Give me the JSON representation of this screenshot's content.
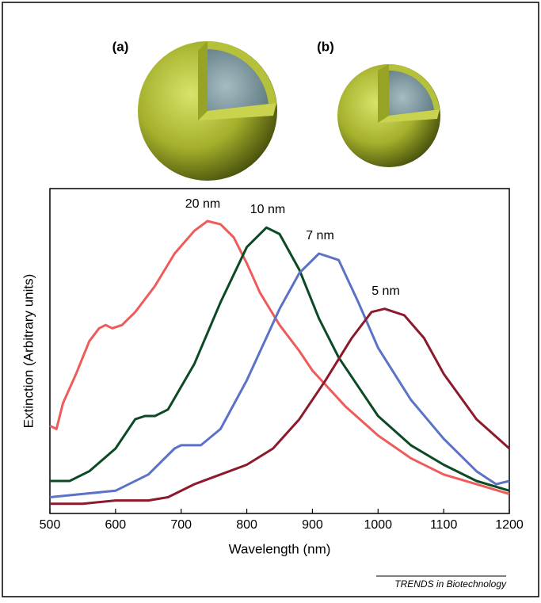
{
  "panel_labels": [
    "(a)",
    "(b)"
  ],
  "footer": "TRENDS in Biotechnology",
  "chart_data": {
    "type": "line",
    "xlabel": "Wavelength (nm)",
    "ylabel": "Extinction (Arbitrary units)",
    "xlim": [
      500,
      1200
    ],
    "xticks": [
      500,
      600,
      700,
      800,
      900,
      1000,
      1100,
      1200
    ],
    "ylim": [
      0,
      100
    ],
    "series": [
      {
        "name": "20 nm",
        "color": "#ef5b5b",
        "x": [
          500,
          510,
          520,
          540,
          560,
          575,
          585,
          595,
          610,
          630,
          660,
          690,
          720,
          740,
          760,
          780,
          800,
          820,
          850,
          880,
          900,
          950,
          1000,
          1050,
          1100,
          1150,
          1200
        ],
        "values": [
          27,
          26,
          34,
          43,
          53,
          57,
          58,
          57,
          58,
          62,
          70,
          80,
          87,
          90,
          89,
          85,
          77,
          68,
          58,
          50,
          44,
          33,
          24,
          17,
          12,
          9,
          6
        ]
      },
      {
        "name": "10 nm",
        "color": "#0b4a25",
        "x": [
          500,
          530,
          560,
          600,
          630,
          645,
          660,
          680,
          720,
          760,
          800,
          830,
          850,
          880,
          910,
          940,
          970,
          1000,
          1050,
          1100,
          1150,
          1200
        ],
        "values": [
          10,
          10,
          13,
          20,
          29,
          30,
          30,
          32,
          46,
          65,
          82,
          88,
          86,
          75,
          60,
          48,
          39,
          30,
          21,
          15,
          10,
          7
        ]
      },
      {
        "name": "7 nm",
        "color": "#5b72c6",
        "x": [
          500,
          550,
          600,
          650,
          690,
          700,
          730,
          760,
          800,
          850,
          880,
          910,
          940,
          970,
          1000,
          1050,
          1100,
          1150,
          1180,
          1200
        ],
        "values": [
          5,
          6,
          7,
          12,
          20,
          21,
          21,
          26,
          41,
          63,
          74,
          80,
          78,
          65,
          51,
          35,
          23,
          13,
          9,
          10
        ]
      },
      {
        "name": "5 nm",
        "color": "#8c1a2c",
        "x": [
          500,
          550,
          600,
          650,
          680,
          720,
          760,
          800,
          840,
          880,
          920,
          960,
          990,
          1010,
          1040,
          1070,
          1100,
          1150,
          1200
        ],
        "values": [
          3,
          3,
          4,
          4,
          5,
          9,
          12,
          15,
          20,
          29,
          41,
          54,
          62,
          63,
          61,
          54,
          43,
          29,
          20
        ]
      }
    ]
  }
}
